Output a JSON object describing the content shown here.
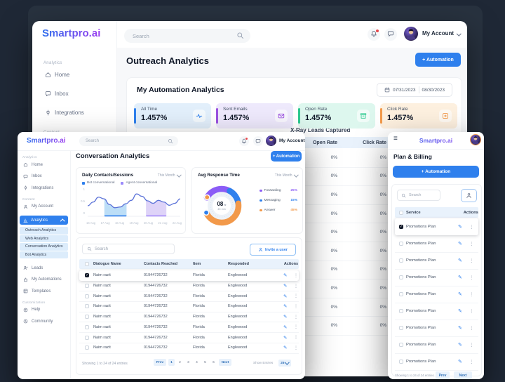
{
  "app": {
    "logo": "Smartpro.ai"
  },
  "colors": {
    "accent": "#2f80ed",
    "purple": "#8b5cf6",
    "orange": "#f2994a",
    "green": "#2dc98f",
    "header_row": "#e9f2fc"
  },
  "back_window": {
    "header": {
      "search_placeholder": "Search",
      "account_label": "My Account"
    },
    "sidebar": {
      "sections": [
        {
          "label": "Analytics",
          "items": [
            {
              "label": "Home",
              "icon": "home"
            },
            {
              "label": "Inbox",
              "icon": "inbox"
            },
            {
              "label": "Integrations",
              "icon": "integrations"
            }
          ]
        },
        {
          "label": "Content",
          "items": []
        }
      ]
    },
    "page_title": "Outreach Analytics",
    "automation_button": "+ Automation",
    "analytics_card": {
      "title": "My Automation Analytics",
      "date_from": "07/31/2023",
      "date_to": "08/30/2023",
      "stats": [
        {
          "label": "All Time",
          "value": "1.457%",
          "accent": "#2f80ed",
          "bg": "#e2effb",
          "icon": "pulse"
        },
        {
          "label": "Sent Emails",
          "value": "1.457%",
          "accent": "#9b51e0",
          "bg": "#eee9fc",
          "icon": "mail"
        },
        {
          "label": "Open Rate",
          "value": "1.457%",
          "accent": "#2dc98f",
          "bg": "#ddf7ee",
          "icon": "box"
        },
        {
          "label": "Click Rate",
          "value": "1.457%",
          "accent": "#f2994a",
          "bg": "#fdf0df",
          "icon": "click"
        }
      ],
      "section_title": "X-Ray Leads Captured",
      "table": {
        "columns": [
          "Open Rate",
          "Click Rate"
        ],
        "rows": [
          {
            "open_rate": "0%",
            "click_rate": "0%"
          },
          {
            "open_rate": "0%",
            "click_rate": "0%"
          },
          {
            "open_rate": "0%",
            "click_rate": "0%"
          },
          {
            "open_rate": "0%",
            "click_rate": "0%"
          },
          {
            "open_rate": "0%",
            "click_rate": "0%"
          },
          {
            "open_rate": "0%",
            "click_rate": "0%"
          },
          {
            "open_rate": "0%",
            "click_rate": "0%"
          },
          {
            "open_rate": "0%",
            "click_rate": "0%"
          },
          {
            "open_rate": "0%",
            "click_rate": "0%"
          },
          {
            "open_rate": "0%",
            "click_rate": "0%"
          }
        ]
      }
    }
  },
  "left_window": {
    "header": {
      "search_placeholder": "Search",
      "account_label": "My Account"
    },
    "sidebar": {
      "sections": [
        {
          "label": "Analytics",
          "items": [
            {
              "label": "Home",
              "icon": "home"
            },
            {
              "label": "Inbox",
              "icon": "inbox"
            },
            {
              "label": "Integrations",
              "icon": "integrations"
            }
          ]
        },
        {
          "label": "Content",
          "items": [
            {
              "label": "My Account",
              "icon": "account"
            },
            {
              "label": "Analytics",
              "icon": "analytics",
              "active": true,
              "submenu": [
                "Outreach Analytics",
                "Web Analytics",
                "Conversation Analytics",
                "Bot Analytics"
              ],
              "active_submenu": "Conversation Analytics"
            },
            {
              "label": "Leads",
              "icon": "leads"
            },
            {
              "label": "My Automations",
              "icon": "automations"
            },
            {
              "label": "Templates",
              "icon": "templates"
            }
          ]
        },
        {
          "label": "Customization",
          "items": [
            {
              "label": "Help",
              "icon": "help"
            },
            {
              "label": "Community",
              "icon": "community"
            }
          ]
        }
      ]
    },
    "page_title": "Conversation Analytics",
    "automation_button": "+ Automation",
    "table": {
      "search_placeholder": "Search",
      "invite_button": "Invite a user",
      "columns": [
        "Dialogue Name",
        "Contacts Reached",
        "Item",
        "Responded",
        "Actions"
      ],
      "rows": [
        {
          "name": "Naim razit",
          "contacts": "01944726732",
          "item": "Florida",
          "responded": "Englewood",
          "selected": true
        },
        {
          "name": "Naim razit",
          "contacts": "01944726732",
          "item": "Florida",
          "responded": "Englewood",
          "selected": false
        },
        {
          "name": "Naim razit",
          "contacts": "01944726732",
          "item": "Florida",
          "responded": "Englewood",
          "selected": false
        },
        {
          "name": "Naim razit",
          "contacts": "01944726732",
          "item": "Florida",
          "responded": "Englewood",
          "selected": false
        },
        {
          "name": "Naim razit",
          "contacts": "01944726732",
          "item": "Florida",
          "responded": "Englewood",
          "selected": false
        },
        {
          "name": "Naim razit",
          "contacts": "01944726732",
          "item": "Florida",
          "responded": "Englewood",
          "selected": false
        },
        {
          "name": "Naim razit",
          "contacts": "01944726732",
          "item": "Florida",
          "responded": "Englewood",
          "selected": false
        },
        {
          "name": "Naim razit",
          "contacts": "01944726732",
          "item": "Florida",
          "responded": "Englewood",
          "selected": false
        }
      ],
      "footer": {
        "showing": "Showing 1 to 24 of 24 entries",
        "prev": "Prev",
        "next": "Next",
        "pages": [
          "1",
          "2",
          "3",
          "4",
          "5",
          "6"
        ],
        "active_page": "1",
        "show_entries_label": "Show Entries",
        "entries_value": "25"
      }
    }
  },
  "right_window": {
    "page_title": "Plan & Billing",
    "automation_button": "+ Automation",
    "search_placeholder": "Search",
    "columns": [
      "Service",
      "Actions"
    ],
    "rows": [
      {
        "name": "Promotions Plan",
        "selected": true
      },
      {
        "name": "Promotions Plan",
        "selected": false
      },
      {
        "name": "Promotions Plan",
        "selected": false
      },
      {
        "name": "Promotions Plan",
        "selected": false
      },
      {
        "name": "Promotions Plan",
        "selected": false
      },
      {
        "name": "Promotions Plan",
        "selected": false
      },
      {
        "name": "Promotions Plan",
        "selected": false
      },
      {
        "name": "Promotions Plan",
        "selected": false
      },
      {
        "name": "Promotions Plan",
        "selected": false
      }
    ],
    "footer": {
      "showing": "Showing 1 to 24 of 24 entries",
      "prev": "Prev",
      "next": "Next"
    }
  },
  "chart_data": [
    {
      "type": "area",
      "title": "Daily Contacts/Sessions",
      "period_filter": "This Month",
      "legend": [
        {
          "label": "Bot conversational",
          "color": "#2f80ed"
        },
        {
          "label": "Agent conversational",
          "color": "#9b8afb"
        }
      ],
      "x_labels": [
        "16 Aug",
        "17 Aug",
        "18 Aug",
        "19 Aug",
        "20 Aug",
        "21 Aug",
        "22 Aug"
      ],
      "y_ticks": [
        "1",
        "0.5",
        "0"
      ],
      "series": [
        {
          "name": "Daily contacts",
          "color": "#5b72d8",
          "values": [
            0.4,
            0.55,
            0.75,
            0.68,
            0.45,
            0.32,
            0.35,
            0.48,
            0.62,
            0.88,
            0.78,
            0.6,
            0.5,
            0.62,
            0.55,
            0.42,
            0.5,
            0.68
          ]
        }
      ],
      "highlight_bands": [
        {
          "from": 0.18,
          "to": 0.42,
          "color": "#bcdef7",
          "edge": "#2f80ed"
        },
        {
          "from": 0.63,
          "to": 0.85,
          "color": "#ded3f8",
          "edge": "#a78bfa"
        }
      ]
    },
    {
      "type": "donut",
      "title": "Avg Response Time",
      "period_filter": "This Month",
      "center": {
        "value": "08",
        "unit": "hr",
        "sub": "45 min"
      },
      "slices": [
        {
          "name": "Forwarding",
          "pct": 25,
          "label": "25%",
          "color": "#8b5cf6"
        },
        {
          "name": "Messaging",
          "pct": 15,
          "label": "15%",
          "color": "#2f80ed"
        },
        {
          "name": "Answer",
          "pct": 45,
          "label": "45%",
          "color": "#f2994a"
        }
      ],
      "gap_pct": 15,
      "start_angle": 210
    }
  ]
}
